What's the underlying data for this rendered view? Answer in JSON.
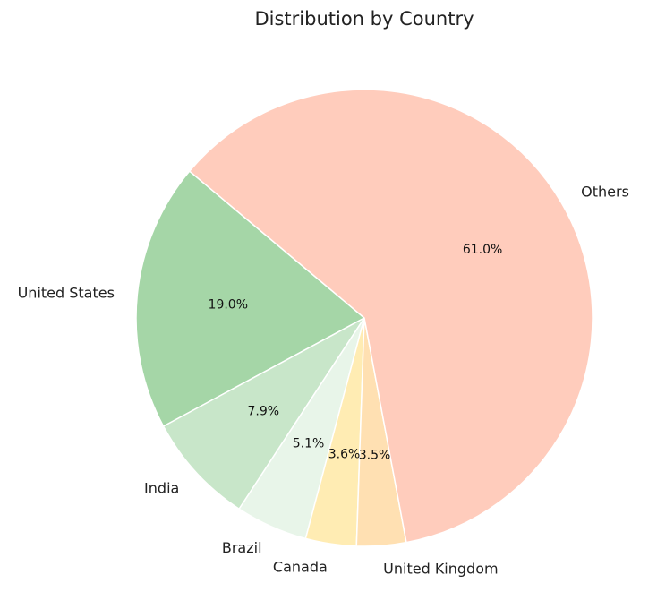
{
  "chart_data": {
    "type": "pie",
    "title": "Distribution by Country",
    "start_angle_deg": 140,
    "direction": "counterclockwise",
    "slices": [
      {
        "label": "United States",
        "value": 19.0,
        "pct_label": "19.0%",
        "color": "#a5d6a7"
      },
      {
        "label": "India",
        "value": 7.9,
        "pct_label": "7.9%",
        "color": "#c8e6c9"
      },
      {
        "label": "Brazil",
        "value": 5.1,
        "pct_label": "5.1%",
        "color": "#e8f5e9"
      },
      {
        "label": "Canada",
        "value": 3.6,
        "pct_label": "3.6%",
        "color": "#ffecb3"
      },
      {
        "label": "United Kingdom",
        "value": 3.5,
        "pct_label": "3.5%",
        "color": "#ffe0b2"
      },
      {
        "label": "Others",
        "value": 61.0,
        "pct_label": "61.0%",
        "color": "#ffccbc"
      }
    ],
    "edge_color": "#ffffff"
  }
}
